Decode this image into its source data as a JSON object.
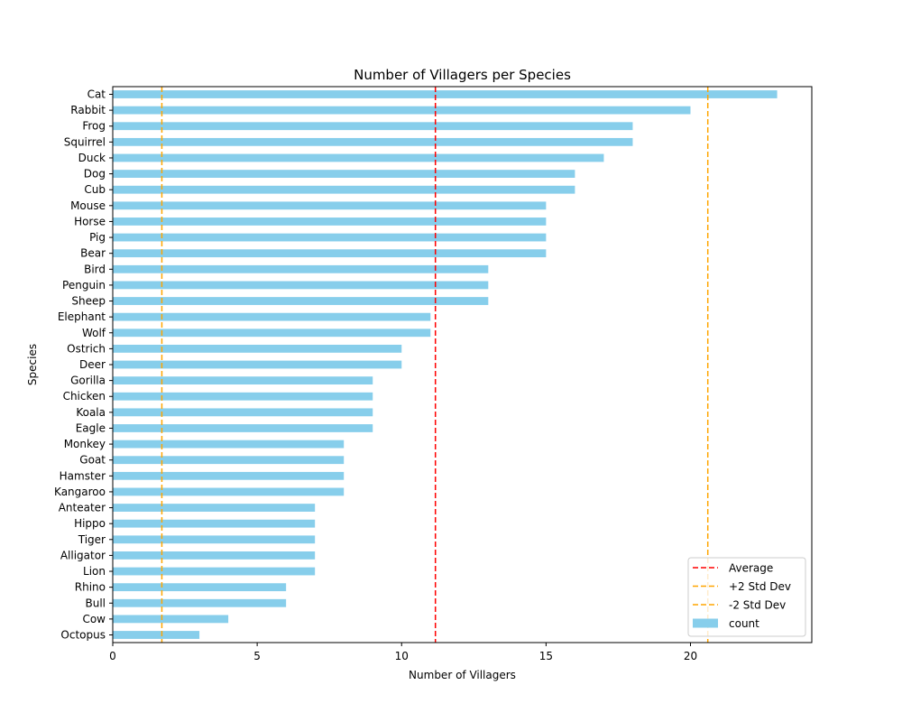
{
  "chart_data": {
    "type": "bar",
    "orientation": "horizontal",
    "title": "Number of Villagers per Species",
    "xlabel": "Number of Villagers",
    "ylabel": "Species",
    "xlim": [
      0,
      24.2
    ],
    "xticks": [
      0,
      5,
      10,
      15,
      20
    ],
    "grid": false,
    "legend_position": "bottom-right",
    "categories": [
      "Cat",
      "Rabbit",
      "Frog",
      "Squirrel",
      "Duck",
      "Dog",
      "Cub",
      "Mouse",
      "Horse",
      "Pig",
      "Bear",
      "Bird",
      "Penguin",
      "Sheep",
      "Elephant",
      "Wolf",
      "Ostrich",
      "Deer",
      "Gorilla",
      "Chicken",
      "Koala",
      "Eagle",
      "Monkey",
      "Goat",
      "Hamster",
      "Kangaroo",
      "Anteater",
      "Hippo",
      "Tiger",
      "Alligator",
      "Lion",
      "Rhino",
      "Bull",
      "Cow",
      "Octopus"
    ],
    "series": [
      {
        "name": "count",
        "color": "#87ceeb",
        "values": [
          23,
          20,
          18,
          18,
          17,
          16,
          16,
          15,
          15,
          15,
          15,
          13,
          13,
          13,
          11,
          11,
          10,
          10,
          9,
          9,
          9,
          9,
          8,
          8,
          8,
          8,
          7,
          7,
          7,
          7,
          7,
          6,
          6,
          4,
          3
        ]
      }
    ],
    "reference_lines": [
      {
        "name": "Average",
        "value": 11.17,
        "color": "#ff0000",
        "style": "dashed"
      },
      {
        "name": "+2 Std Dev",
        "value": 20.6,
        "color": "#ffa500",
        "style": "dashed"
      },
      {
        "name": "-2 Std Dev",
        "value": 1.7,
        "color": "#ffa500",
        "style": "dashed"
      }
    ]
  }
}
